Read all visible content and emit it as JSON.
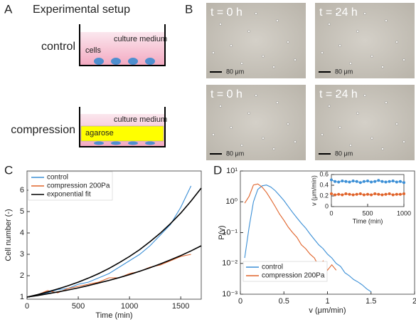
{
  "panels": {
    "A": {
      "letter": "A",
      "title": "Experimental setup",
      "control": "control",
      "cells": "cells",
      "medium_top": "culture medium",
      "compression": "compression",
      "medium_bottom": "culture medium",
      "agarose": "agarose"
    },
    "B": {
      "letter": "B",
      "images": [
        {
          "time": "t = 0 h",
          "scale": "80 μm"
        },
        {
          "time": "t = 24 h",
          "scale": "80 μm"
        },
        {
          "time": "t = 0 h",
          "scale": "80 μm"
        },
        {
          "time": "t = 24 h",
          "scale": "80 μm"
        }
      ]
    },
    "C": {
      "letter": "C"
    },
    "D": {
      "letter": "D"
    }
  },
  "chart_data": [
    {
      "type": "line",
      "xlabel": "Time (min)",
      "ylabel": "Cell number (-)",
      "xlim": [
        0,
        1700
      ],
      "ylim": [
        0.9,
        6.9
      ],
      "xticks": [
        0,
        500,
        1000,
        1500
      ],
      "yticks": [
        1,
        2,
        3,
        4,
        5,
        6
      ],
      "legend": "upper left",
      "series": [
        {
          "name": "control",
          "color": "#3b8fd6",
          "x": [
            0,
            100,
            200,
            300,
            400,
            500,
            600,
            700,
            800,
            900,
            1000,
            1100,
            1200,
            1300,
            1400,
            1500,
            1600
          ],
          "values": [
            1,
            1.1,
            1.2,
            1.35,
            1.4,
            1.6,
            1.7,
            1.9,
            2.1,
            2.4,
            2.7,
            3.0,
            3.4,
            3.9,
            4.4,
            5.2,
            6.2
          ]
        },
        {
          "name": "compression 200Pa",
          "color": "#e0632a",
          "x": [
            0,
            100,
            200,
            300,
            400,
            500,
            600,
            700,
            800,
            900,
            1000,
            1100,
            1200,
            1300,
            1400,
            1500,
            1600
          ],
          "values": [
            1,
            1.1,
            1.3,
            1.2,
            1.4,
            1.5,
            1.6,
            1.7,
            1.9,
            1.9,
            2.1,
            2.2,
            2.4,
            2.5,
            2.7,
            2.9,
            3.0
          ]
        },
        {
          "name": "exponential fit",
          "color": "#000000",
          "x": [
            0,
            100,
            200,
            300,
            400,
            500,
            600,
            700,
            800,
            900,
            1000,
            1100,
            1200,
            1300,
            1400,
            1500,
            1600,
            1700
          ],
          "values": [
            1,
            1.11,
            1.24,
            1.38,
            1.53,
            1.7,
            1.89,
            2.1,
            2.34,
            2.61,
            2.9,
            3.22,
            3.59,
            3.99,
            4.44,
            4.93,
            5.49,
            6.1
          ]
        },
        {
          "color": "#000000",
          "x": [
            0,
            100,
            200,
            300,
            400,
            500,
            600,
            700,
            800,
            900,
            1000,
            1100,
            1200,
            1300,
            1400,
            1500,
            1600,
            1700
          ],
          "values": [
            1,
            1.07,
            1.155,
            1.24,
            1.33,
            1.43,
            1.54,
            1.66,
            1.78,
            1.91,
            2.05,
            2.21,
            2.37,
            2.55,
            2.74,
            2.94,
            3.16,
            3.4
          ]
        }
      ]
    },
    {
      "type": "line",
      "log_y": true,
      "xlabel": "v (μm/min)",
      "ylabel": "P(v)",
      "xlim": [
        0,
        2
      ],
      "ylim": [
        0.001,
        10
      ],
      "xticks": [
        0,
        0.5,
        1,
        1.5,
        2
      ],
      "yticks": [
        {
          "value": 0.001,
          "label": "10⁻³"
        },
        {
          "value": 0.01,
          "label": "10⁻²"
        },
        {
          "value": 0.1,
          "label": "10⁻¹"
        },
        {
          "value": 1,
          "label": "10⁰"
        },
        {
          "value": 10,
          "label": "10¹"
        }
      ],
      "legend": "lower left",
      "series": [
        {
          "name": "control",
          "color": "#3b8fd6",
          "x": [
            0.05,
            0.1,
            0.15,
            0.2,
            0.25,
            0.3,
            0.35,
            0.4,
            0.45,
            0.5,
            0.55,
            0.6,
            0.65,
            0.7,
            0.75,
            0.8,
            0.85,
            0.9,
            0.95,
            1.0,
            1.05,
            1.1,
            1.15,
            1.2,
            1.25,
            1.3,
            1.35,
            1.4,
            1.45,
            1.5
          ],
          "values": [
            0.015,
            0.15,
            1.0,
            2.5,
            3.3,
            3.5,
            3.0,
            2.3,
            1.6,
            1.1,
            0.7,
            0.45,
            0.3,
            0.2,
            0.14,
            0.09,
            0.06,
            0.04,
            0.03,
            0.02,
            0.015,
            0.01,
            0.008,
            0.005,
            0.004,
            0.003,
            0.0025,
            0.002,
            0.0015,
            0.0012
          ]
        },
        {
          "name": "compression 200Pa",
          "color": "#e0632a",
          "x": [
            0.05,
            0.1,
            0.15,
            0.2,
            0.25,
            0.3,
            0.35,
            0.4,
            0.45,
            0.5,
            0.55,
            0.6,
            0.65,
            0.7,
            0.75,
            0.8,
            0.85,
            0.9,
            0.95,
            1.0,
            1.05,
            1.1
          ],
          "values": [
            0.9,
            1.5,
            3.5,
            3.8,
            3.0,
            2.0,
            1.2,
            0.7,
            0.4,
            0.25,
            0.15,
            0.1,
            0.07,
            0.04,
            0.03,
            0.02,
            0.015,
            0.008,
            0.012,
            0.006,
            0.009,
            0.006
          ]
        }
      ]
    },
    {
      "type": "line",
      "markers": true,
      "xlabel": "Time (min)",
      "ylabel": "v (μm/min)",
      "xlim": [
        0,
        1000
      ],
      "ylim": [
        0,
        0.6
      ],
      "xticks": [
        0,
        500,
        1000
      ],
      "yticks": [
        0,
        0.2,
        0.4,
        0.6
      ],
      "series": [
        {
          "color": "#3b8fd6",
          "x": [
            0,
            50,
            100,
            150,
            200,
            250,
            300,
            350,
            400,
            450,
            500,
            550,
            600,
            650,
            700,
            750,
            800,
            850,
            900,
            950,
            1000
          ],
          "values": [
            0.5,
            0.47,
            0.46,
            0.48,
            0.47,
            0.46,
            0.48,
            0.47,
            0.45,
            0.47,
            0.48,
            0.46,
            0.47,
            0.49,
            0.47,
            0.46,
            0.47,
            0.48,
            0.46,
            0.47,
            0.45
          ]
        },
        {
          "color": "#e0632a",
          "x": [
            0,
            50,
            100,
            150,
            200,
            250,
            300,
            350,
            400,
            450,
            500,
            550,
            600,
            650,
            700,
            750,
            800,
            850,
            900,
            950,
            1000
          ],
          "values": [
            0.24,
            0.22,
            0.23,
            0.22,
            0.24,
            0.23,
            0.22,
            0.23,
            0.24,
            0.22,
            0.23,
            0.22,
            0.24,
            0.23,
            0.22,
            0.23,
            0.24,
            0.22,
            0.23,
            0.23,
            0.24
          ]
        }
      ]
    }
  ]
}
